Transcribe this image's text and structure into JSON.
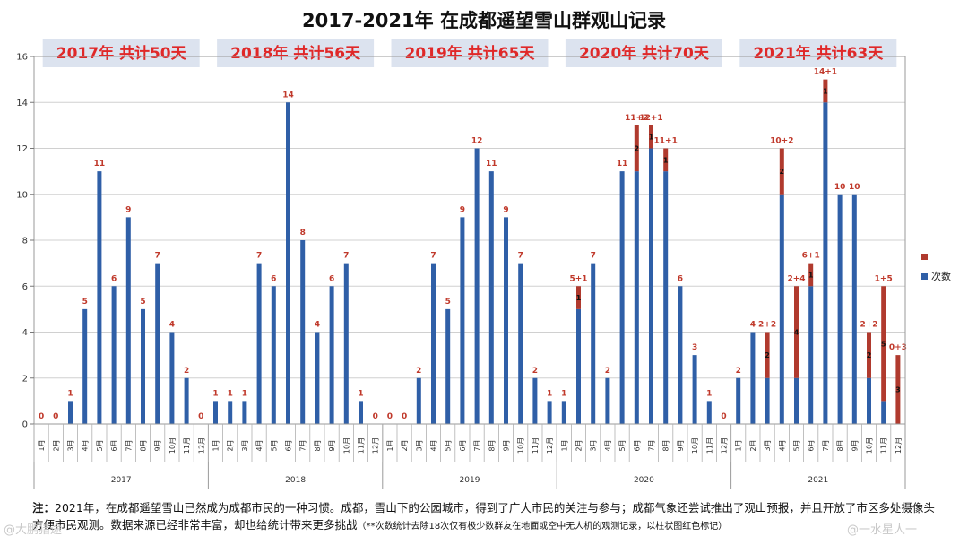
{
  "chart_data": {
    "type": "stacked-bar",
    "title": "2017-2021年 在成都遥望雪山群观山记录",
    "ylim": [
      0,
      16
    ],
    "yticks": [
      0,
      2,
      4,
      6,
      8,
      10,
      12,
      14,
      16
    ],
    "legend": [
      {
        "name": "",
        "color": "#b03a2e"
      },
      {
        "name": "次数",
        "color": "#2f5fa7"
      }
    ],
    "colors": {
      "base": "#2f5fa7",
      "extra": "#b03a2e",
      "label": "#c0392b"
    },
    "months": [
      "1月",
      "2月",
      "3月",
      "4月",
      "5月",
      "6月",
      "7月",
      "8月",
      "9月",
      "10月",
      "11月",
      "12月"
    ],
    "years": [
      {
        "year": "2017",
        "banner": "2017年 共计50天",
        "base": [
          0,
          0,
          1,
          5,
          11,
          6,
          9,
          5,
          7,
          4,
          2,
          0
        ],
        "extra": [
          0,
          0,
          0,
          0,
          0,
          0,
          0,
          0,
          0,
          0,
          0,
          0
        ],
        "labels": [
          "0",
          "0",
          "1",
          "5",
          "11",
          "6",
          "9",
          "5",
          "7",
          "4",
          "2",
          "0"
        ]
      },
      {
        "year": "2018",
        "banner": "2018年 共计56天",
        "base": [
          1,
          1,
          1,
          7,
          6,
          14,
          8,
          4,
          6,
          7,
          1,
          0
        ],
        "extra": [
          0,
          0,
          0,
          0,
          0,
          0,
          0,
          0,
          0,
          0,
          0,
          0
        ],
        "labels": [
          "1",
          "1",
          "1",
          "7",
          "6",
          "14",
          "8",
          "4",
          "6",
          "7",
          "1",
          "0"
        ]
      },
      {
        "year": "2019",
        "banner": "2019年 共计65天",
        "base": [
          0,
          0,
          2,
          7,
          5,
          9,
          12,
          11,
          9,
          7,
          2,
          1
        ],
        "extra": [
          0,
          0,
          0,
          0,
          0,
          0,
          0,
          0,
          0,
          0,
          0,
          0
        ],
        "labels": [
          "0",
          "0",
          "2",
          "7",
          "5",
          "9",
          "12",
          "11",
          "9",
          "7",
          "2",
          "1"
        ]
      },
      {
        "year": "2020",
        "banner": "2020年 共计70天",
        "base": [
          1,
          5,
          7,
          2,
          11,
          11,
          12,
          11,
          6,
          3,
          1,
          0
        ],
        "extra": [
          0,
          1,
          0,
          0,
          0,
          2,
          1,
          1,
          0,
          0,
          0,
          0
        ],
        "labels": [
          "1",
          "5+1",
          "7",
          "2",
          "11",
          "11+2",
          "12+1",
          "11+1",
          "6",
          "3",
          "1",
          "0"
        ]
      },
      {
        "year": "2021",
        "banner": "2021年 共计63天",
        "base": [
          2,
          4,
          2,
          10,
          2,
          6,
          14,
          10,
          10,
          2,
          1,
          0
        ],
        "extra": [
          0,
          0,
          2,
          2,
          4,
          1,
          1,
          0,
          0,
          2,
          5,
          3
        ],
        "labels": [
          "2",
          "4",
          "2+2",
          "10+2",
          "2+4",
          "6+1",
          "14+1",
          "10",
          "10",
          "2+2",
          "1+5",
          "0+3"
        ]
      }
    ]
  },
  "note": {
    "lead": "注：",
    "text": "2021年，在成都遥望雪山已然成为成都市民的一种习惯。成都，雪山下的公园城市，得到了广大市民的关注与参与；成都气象还尝试推出了观山预报，并且开放了市区多处摄像头方便市民观测。数据来源已经非常丰富，却也给统计带来更多挑战",
    "small": "（**次数统计去除18次仅有极少数群友在地面或空中无人机的观测记录，以柱状图红色标记）"
  },
  "watermarks": {
    "left": "@大鹏猎途",
    "right": "@一水星人一"
  }
}
